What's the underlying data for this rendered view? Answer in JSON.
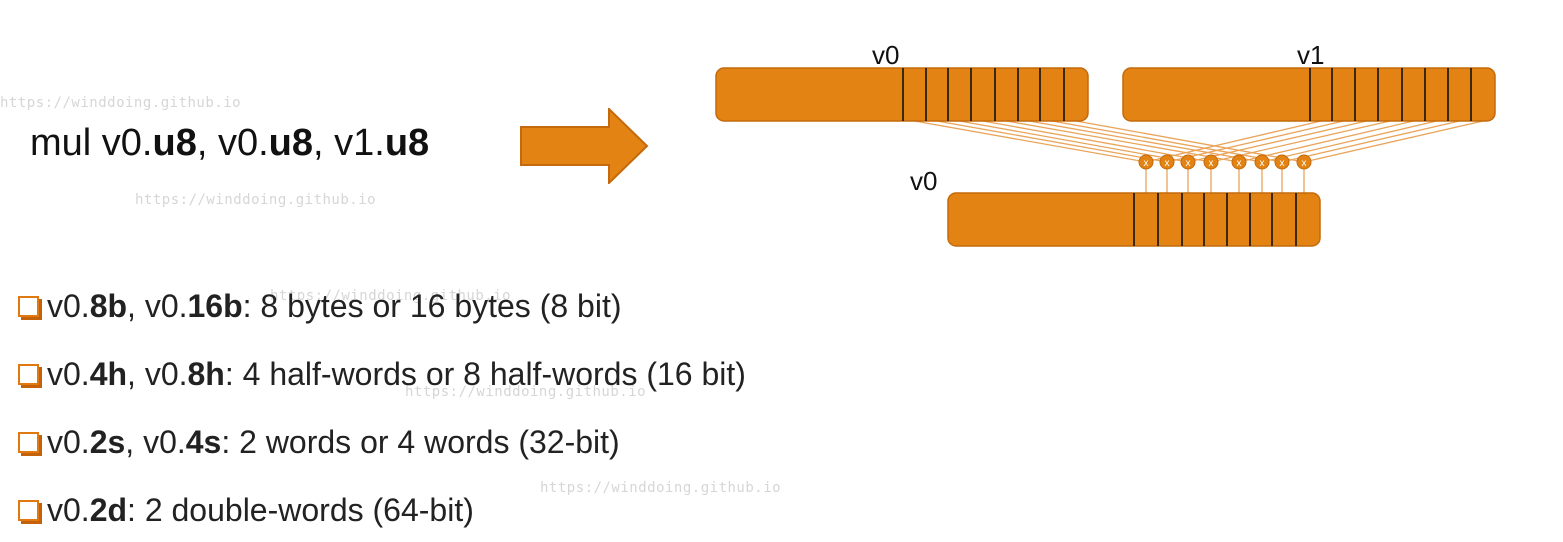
{
  "watermark": "https://winddoing.github.io",
  "instruction": {
    "mnemonic": "mul v0.",
    "arg1_suffix": "u8",
    "sep1": ", v0.",
    "arg2_suffix": "u8",
    "sep2": ", v1.",
    "arg3_suffix": "u8"
  },
  "diagram": {
    "src1_label": "v0",
    "src2_label": "v1",
    "dst_label": "v0",
    "op_symbol": "x",
    "lane_count": 8,
    "colors": {
      "fill": "#e38313",
      "stroke": "#c46a0c",
      "line": "#e9a45a"
    }
  },
  "bullets": [
    {
      "prefix": "v0.",
      "b1": "8b",
      "mid": ", v0.",
      "b2": "16b",
      "rest": ": 8 bytes or 16 bytes (8 bit)"
    },
    {
      "prefix": "v0.",
      "b1": "4h",
      "mid": ", v0.",
      "b2": "8h",
      "rest": ": 4 half-words or 8 half-words (16 bit)"
    },
    {
      "prefix": "v0.",
      "b1": "2s",
      "mid": ", v0.",
      "b2": "4s",
      "rest": ": 2 words or 4 words (32-bit)"
    },
    {
      "prefix": "v0.",
      "b1": "2d",
      "mid": "",
      "b2": "",
      "rest": ": 2 double-words (64-bit)"
    }
  ]
}
